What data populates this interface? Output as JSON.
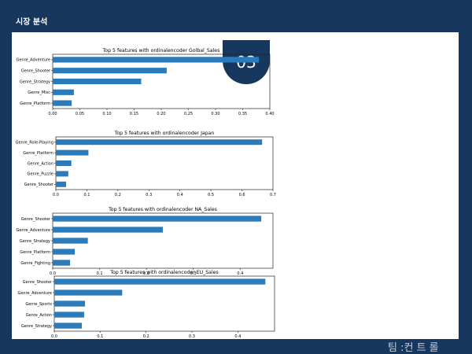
{
  "slide": {
    "title": "시장 분석",
    "page_number": "03",
    "footer": "팀 :컨 트 롤"
  },
  "colors": {
    "background": "#17375e",
    "bar": "#2b7bba"
  },
  "chart_data": [
    {
      "type": "bar",
      "orientation": "horizontal",
      "title": "Top 5 features with ordinalencoder Golbal_Sales",
      "categories": [
        "Genre_Adventure",
        "Genre_Shooter",
        "Genre_Strategy",
        "Genre_Misc",
        "Genre_Platform"
      ],
      "values": [
        0.38,
        0.21,
        0.163,
        0.039,
        0.035
      ],
      "xlim": [
        0,
        0.4
      ],
      "ticks": [
        0.0,
        0.05,
        0.1,
        0.15,
        0.2,
        0.25,
        0.3,
        0.35,
        0.4
      ],
      "tick_labels": [
        "0.00",
        "0.05",
        "0.10",
        "0.15",
        "0.20",
        "0.25",
        "0.30",
        "0.35",
        "0.40"
      ]
    },
    {
      "type": "bar",
      "orientation": "horizontal",
      "title": "Top 5 features with ordinalencoder Japan",
      "categories": [
        "Genre_Role-Playing",
        "Genre_Platform",
        "Genre_Action",
        "Genre_Puzzle",
        "Genre_Shooter"
      ],
      "values": [
        0.665,
        0.105,
        0.05,
        0.04,
        0.033
      ],
      "xlim": [
        0,
        0.7
      ],
      "ticks": [
        0.0,
        0.1,
        0.2,
        0.3,
        0.4,
        0.5,
        0.6,
        0.7
      ],
      "tick_labels": [
        "0.0",
        "0.1",
        "0.2",
        "0.3",
        "0.4",
        "0.5",
        "0.6",
        "0.7"
      ]
    },
    {
      "type": "bar",
      "orientation": "horizontal",
      "title": "Top 5 features with ordinalencoder NA_Sales",
      "categories": [
        "Genre_Shooter",
        "Genre_Adventure",
        "Genre_Strategy",
        "Genre_Platform",
        "Genre_Fighting"
      ],
      "values": [
        0.445,
        0.235,
        0.075,
        0.047,
        0.037
      ],
      "xlim": [
        0,
        0.47
      ],
      "ticks": [
        0.0,
        0.1,
        0.2,
        0.3,
        0.4
      ],
      "tick_labels": [
        "0.0",
        "0.1",
        "0.2",
        "0.3",
        "0.4"
      ]
    },
    {
      "type": "bar",
      "orientation": "horizontal",
      "title": "Top 5 features with ordinalencoder EU_Sales",
      "categories": [
        "Genre_Shooter",
        "Genre_Adventure",
        "Genre_Sports",
        "Genre_Action",
        "Genre_Strategy"
      ],
      "values": [
        0.46,
        0.148,
        0.067,
        0.065,
        0.06
      ],
      "xlim": [
        0,
        0.48
      ],
      "ticks": [
        0.0,
        0.1,
        0.2,
        0.3,
        0.4
      ],
      "tick_labels": [
        "0.0",
        "0.1",
        "0.2",
        "0.3",
        "0.4"
      ]
    }
  ]
}
